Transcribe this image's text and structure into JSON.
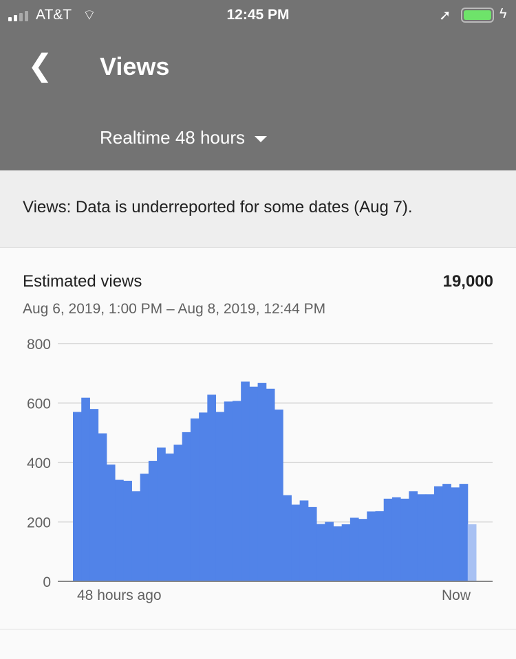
{
  "status_bar": {
    "carrier": "AT&T",
    "time": "12:45 PM"
  },
  "header": {
    "title": "Views",
    "range_selector": "Realtime 48 hours"
  },
  "notice": "Views: Data is underreported for some dates (Aug 7).",
  "card": {
    "label": "Estimated views",
    "total": "19,000",
    "date_range": "Aug 6, 2019, 1:00 PM – Aug 8, 2019, 12:44 PM"
  },
  "colors": {
    "bar": "#5183e8",
    "bar_partial": "#a8c1f3",
    "header": "#737373"
  },
  "chart_data": {
    "type": "bar",
    "ylim": [
      0,
      800
    ],
    "yticks": [
      "0",
      "200",
      "400",
      "600",
      "800"
    ],
    "xlabels": [
      "48 hours ago",
      "Now"
    ],
    "grid": true,
    "values": [
      570,
      618,
      580,
      498,
      393,
      342,
      338,
      303,
      362,
      405,
      450,
      430,
      460,
      502,
      548,
      568,
      628,
      570,
      605,
      607,
      672,
      655,
      668,
      648,
      578,
      290,
      258,
      272,
      250,
      193,
      200,
      185,
      192,
      214,
      210,
      235,
      236,
      278,
      283,
      278,
      303,
      293,
      293,
      320,
      328,
      316,
      328,
      192
    ],
    "partial_last": true
  }
}
